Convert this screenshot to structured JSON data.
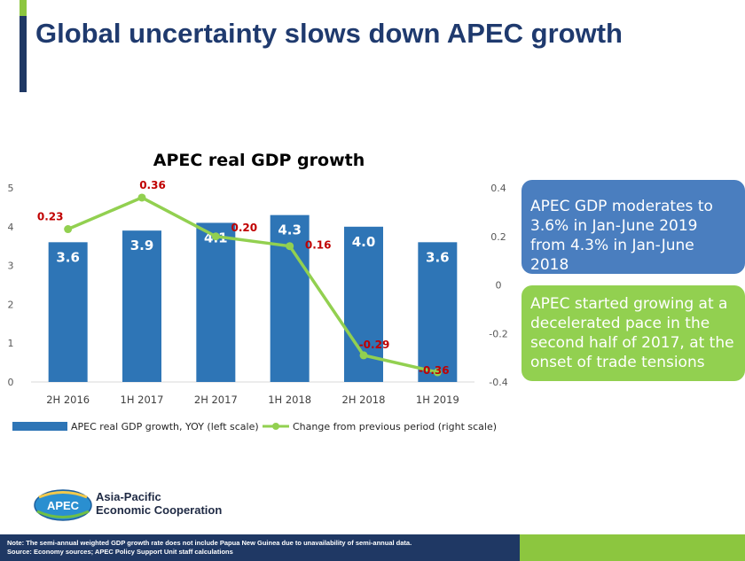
{
  "slide": {
    "title": "Global uncertainty slows down APEC growth",
    "colors": {
      "navy": "#1f3864",
      "green": "#8cc63f",
      "bar": "#2e75b6",
      "line": "#92d050",
      "label_red": "#c00000"
    }
  },
  "chart_data": {
    "type": "bar",
    "title": "APEC real GDP growth",
    "categories": [
      "2H 2016",
      "1H 2017",
      "2H 2017",
      "1H 2018",
      "2H 2018",
      "1H 2019"
    ],
    "series": [
      {
        "name": "APEC real GDP growth, YOY (left scale)",
        "type": "bar",
        "axis": "left",
        "values": [
          3.6,
          3.9,
          4.1,
          4.3,
          4.0,
          3.6
        ],
        "labels": [
          "3.6",
          "3.9",
          "4.1",
          "4.3",
          "4.0",
          "3.6"
        ]
      },
      {
        "name": "Change from previous period (right scale)",
        "type": "line",
        "axis": "right",
        "values": [
          0.23,
          0.36,
          0.2,
          0.16,
          -0.29,
          -0.36
        ],
        "labels": [
          "0.23",
          "0.36",
          "0.20",
          "0.16",
          "-0.29",
          "-0.36"
        ]
      }
    ],
    "ylim_left": [
      0,
      5
    ],
    "yticks_left": [
      "0",
      "1",
      "2",
      "3",
      "4",
      "5"
    ],
    "ylim_right": [
      -0.4,
      0.4
    ],
    "yticks_right": [
      "0.4",
      "0.2",
      "0",
      "-0.2",
      "-0.4"
    ],
    "legend_position": "bottom"
  },
  "callouts": {
    "box1": "APEC GDP moderates to 3.6% in Jan-June 2019 from 4.3% in Jan-June 2018",
    "box2": "APEC started growing at a decelerated pace in the second half of 2017, at the onset of trade tensions"
  },
  "logo": {
    "mark": "APEC",
    "line1": "Asia-Pacific",
    "line2": "Economic Cooperation"
  },
  "footer": {
    "note": "Note: The semi-annual weighted GDP growth rate does not include Papua New Guinea due to unavailability of semi-annual data.",
    "source": "Source: Economy sources; APEC Policy Support Unit staff calculations"
  }
}
